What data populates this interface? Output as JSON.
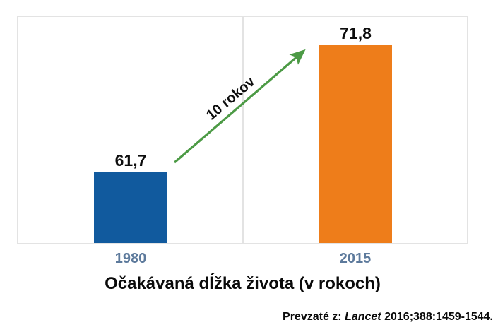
{
  "chart_data": {
    "type": "bar",
    "categories": [
      "1980",
      "2015"
    ],
    "values": [
      61.7,
      71.8
    ],
    "value_labels": [
      "61,7",
      "71,8"
    ],
    "series": [
      {
        "name": "Očakávaná dĺžka života",
        "values": [
          61.7,
          71.8
        ]
      }
    ],
    "title": "Očakávaná dĺžka života (v rokoch)",
    "xlabel": "",
    "ylabel": "",
    "ylim": [
      56,
      74
    ],
    "grid": "single vertical center gridline, light gray, no horizontal gridlines, no y-axis labels",
    "legend": "none",
    "bar_colors": [
      "#115a9e",
      "#ee7d1a"
    ],
    "annotation": {
      "type": "arrow",
      "label": "10 rokov",
      "color": "#4c9a45",
      "from": "top of 1980 bar",
      "to": "top of 2015 bar"
    }
  },
  "title": {
    "text": "Očakávaná dĺžka života (v rokoch)"
  },
  "annotation": {
    "arrow_label": "10 rokov"
  },
  "source": {
    "prefix": "Prevzaté z:",
    "journal": "Lancet",
    "reference": "2016;388:1459-1544."
  },
  "colors": {
    "bar_1980": "#115a9e",
    "bar_2015": "#ee7d1a",
    "arrow_green": "#4c9a45",
    "frame_gray": "#e3e3e3",
    "tick_label_blue_gray": "#5d7a9c",
    "text_black": "#0a0a0a"
  }
}
